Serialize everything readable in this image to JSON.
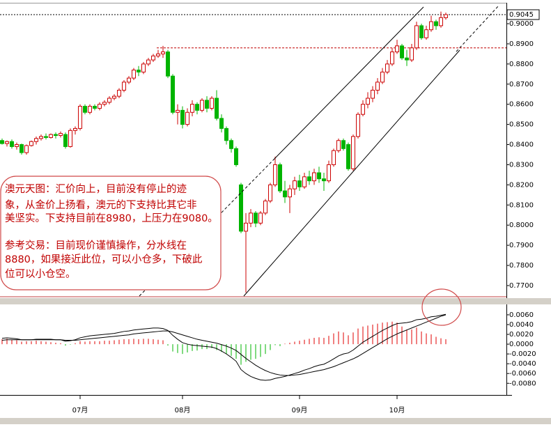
{
  "annotation": {
    "lines": [
      "澳元天图：汇价向上，目前没有停止的迹",
      "象，从金价上扬看，澳元的下支持比其它非",
      "美坚实。下支持目前在8980，上压力在9080。",
      "参考交易：目前现价谨慎操作，分水线在",
      "8880，如果接近此位，可以小仓多，下破此",
      "位可以小仓空。"
    ]
  },
  "chart_data": [
    {
      "type": "candlestick",
      "up_color": "#cc0000",
      "down_color": "#00b400",
      "ylim": [
        0.7648,
        0.909
      ],
      "yticks": [
        {
          "value": 0.9,
          "label": "0.9000"
        },
        {
          "value": 0.89,
          "label": "0.8900"
        },
        {
          "value": 0.88,
          "label": "0.8800"
        },
        {
          "value": 0.87,
          "label": "0.8700"
        },
        {
          "value": 0.86,
          "label": "0.8600"
        },
        {
          "value": 0.85,
          "label": "0.8500"
        },
        {
          "value": 0.84,
          "label": "0.8400"
        },
        {
          "value": 0.83,
          "label": "0.8300"
        },
        {
          "value": 0.82,
          "label": "0.8200"
        },
        {
          "value": 0.81,
          "label": "0.8100"
        },
        {
          "value": 0.8,
          "label": "0.8000"
        },
        {
          "value": 0.79,
          "label": "0.7900"
        },
        {
          "value": 0.78,
          "label": "0.7800"
        },
        {
          "value": 0.77,
          "label": "0.7700"
        }
      ],
      "last_price": {
        "value": 0.9045,
        "label": "0.9045"
      },
      "reference_line": 0.888,
      "reference_color": "#c00000",
      "ohlc": [
        [
          0.842,
          0.843,
          0.84,
          0.8405
        ],
        [
          0.8405,
          0.842,
          0.839,
          0.8415
        ],
        [
          0.8415,
          0.8425,
          0.838,
          0.839
        ],
        [
          0.839,
          0.841,
          0.8375,
          0.84
        ],
        [
          0.84,
          0.8405,
          0.835,
          0.836
        ],
        [
          0.836,
          0.84,
          0.835,
          0.8395
        ],
        [
          0.8395,
          0.842,
          0.839,
          0.8415
        ],
        [
          0.8415,
          0.844,
          0.84,
          0.843
        ],
        [
          0.843,
          0.845,
          0.842,
          0.844
        ],
        [
          0.844,
          0.8455,
          0.8425,
          0.8435
        ],
        [
          0.8435,
          0.8455,
          0.843,
          0.845
        ],
        [
          0.845,
          0.846,
          0.843,
          0.8445
        ],
        [
          0.8445,
          0.8465,
          0.8435,
          0.8455
        ],
        [
          0.845,
          0.846,
          0.838,
          0.839
        ],
        [
          0.839,
          0.848,
          0.8385,
          0.847
        ],
        [
          0.847,
          0.849,
          0.845,
          0.848
        ],
        [
          0.848,
          0.86,
          0.847,
          0.859
        ],
        [
          0.859,
          0.86,
          0.855,
          0.856
        ],
        [
          0.856,
          0.86,
          0.855,
          0.859
        ],
        [
          0.859,
          0.86,
          0.857,
          0.858
        ],
        [
          0.858,
          0.861,
          0.857,
          0.86
        ],
        [
          0.86,
          0.862,
          0.859,
          0.861
        ],
        [
          0.861,
          0.864,
          0.86,
          0.863
        ],
        [
          0.863,
          0.865,
          0.862,
          0.864
        ],
        [
          0.864,
          0.868,
          0.863,
          0.867
        ],
        [
          0.867,
          0.872,
          0.866,
          0.871
        ],
        [
          0.871,
          0.874,
          0.87,
          0.873
        ],
        [
          0.873,
          0.878,
          0.872,
          0.877
        ],
        [
          0.877,
          0.879,
          0.874,
          0.876
        ],
        [
          0.876,
          0.881,
          0.875,
          0.88
        ],
        [
          0.88,
          0.883,
          0.879,
          0.882
        ],
        [
          0.882,
          0.885,
          0.881,
          0.884
        ],
        [
          0.884,
          0.887,
          0.883,
          0.885
        ],
        [
          0.885,
          0.889,
          0.883,
          0.886
        ],
        [
          0.886,
          0.887,
          0.873,
          0.874
        ],
        [
          0.874,
          0.875,
          0.855,
          0.856
        ],
        [
          0.856,
          0.86,
          0.85,
          0.857
        ],
        [
          0.857,
          0.859,
          0.848,
          0.85
        ],
        [
          0.85,
          0.858,
          0.849,
          0.856
        ],
        [
          0.856,
          0.862,
          0.854,
          0.86
        ],
        [
          0.86,
          0.861,
          0.855,
          0.857
        ],
        [
          0.857,
          0.863,
          0.856,
          0.862
        ],
        [
          0.862,
          0.864,
          0.856,
          0.858
        ],
        [
          0.858,
          0.864,
          0.857,
          0.863
        ],
        [
          0.863,
          0.867,
          0.852,
          0.853
        ],
        [
          0.853,
          0.855,
          0.846,
          0.848
        ],
        [
          0.848,
          0.849,
          0.84,
          0.842
        ],
        [
          0.842,
          0.843,
          0.836,
          0.838
        ],
        [
          0.838,
          0.839,
          0.829,
          0.83
        ],
        [
          0.82,
          0.821,
          0.796,
          0.797
        ],
        [
          0.797,
          0.806,
          0.7665,
          0.801
        ],
        [
          0.801,
          0.808,
          0.799,
          0.806
        ],
        [
          0.806,
          0.807,
          0.799,
          0.801
        ],
        [
          0.801,
          0.807,
          0.8,
          0.806
        ],
        [
          0.806,
          0.813,
          0.805,
          0.812
        ],
        [
          0.812,
          0.821,
          0.811,
          0.82
        ],
        [
          0.82,
          0.834,
          0.819,
          0.83
        ],
        [
          0.83,
          0.831,
          0.816,
          0.817
        ],
        [
          0.817,
          0.822,
          0.811,
          0.814
        ],
        [
          0.814,
          0.82,
          0.806,
          0.818
        ],
        [
          0.818,
          0.824,
          0.815,
          0.822
        ],
        [
          0.822,
          0.825,
          0.817,
          0.819
        ],
        [
          0.819,
          0.826,
          0.818,
          0.824
        ],
        [
          0.824,
          0.827,
          0.82,
          0.822
        ],
        [
          0.822,
          0.828,
          0.82,
          0.826
        ],
        [
          0.826,
          0.829,
          0.821,
          0.823
        ],
        [
          0.823,
          0.826,
          0.817,
          0.822
        ],
        [
          0.822,
          0.832,
          0.821,
          0.83
        ],
        [
          0.83,
          0.838,
          0.829,
          0.837
        ],
        [
          0.837,
          0.843,
          0.836,
          0.842
        ],
        [
          0.842,
          0.843,
          0.837,
          0.838
        ],
        [
          0.84,
          0.841,
          0.827,
          0.828
        ],
        [
          0.828,
          0.845,
          0.827,
          0.844
        ],
        [
          0.844,
          0.856,
          0.843,
          0.855
        ],
        [
          0.855,
          0.862,
          0.854,
          0.86
        ],
        [
          0.86,
          0.866,
          0.858,
          0.863
        ],
        [
          0.863,
          0.869,
          0.861,
          0.867
        ],
        [
          0.867,
          0.873,
          0.865,
          0.871
        ],
        [
          0.871,
          0.878,
          0.87,
          0.876
        ],
        [
          0.876,
          0.882,
          0.875,
          0.88
        ],
        [
          0.88,
          0.888,
          0.879,
          0.886
        ],
        [
          0.886,
          0.892,
          0.885,
          0.889
        ],
        [
          0.889,
          0.89,
          0.882,
          0.883
        ],
        [
          0.883,
          0.887,
          0.879,
          0.882
        ],
        [
          0.882,
          0.89,
          0.881,
          0.888
        ],
        [
          0.888,
          0.901,
          0.887,
          0.899
        ],
        [
          0.899,
          0.9,
          0.892,
          0.893
        ],
        [
          0.893,
          0.899,
          0.892,
          0.897
        ],
        [
          0.897,
          0.904,
          0.896,
          0.901
        ],
        [
          0.901,
          0.902,
          0.897,
          0.899
        ],
        [
          0.899,
          0.906,
          0.898,
          0.903
        ],
        [
          0.903,
          0.9055,
          0.902,
          0.9045
        ]
      ]
    },
    {
      "type": "macd",
      "up_color": "#e00000",
      "down_color": "#00b400",
      "ylim": [
        -0.0101,
        0.0077
      ],
      "yticks": [
        {
          "value": 0.006,
          "label": "0.0060"
        },
        {
          "value": 0.004,
          "label": "0.0040"
        },
        {
          "value": 0.002,
          "label": "0.0020"
        },
        {
          "value": 0,
          "label": "0.0000"
        },
        {
          "value": -0.002,
          "label": "-0.0020"
        },
        {
          "value": -0.004,
          "label": "-0.0040"
        },
        {
          "value": -0.006,
          "label": "-0.0060"
        },
        {
          "value": -0.008,
          "label": "-0.0080"
        }
      ],
      "categories": [
        null,
        null,
        null,
        null,
        null,
        null,
        null,
        null,
        null,
        null,
        null,
        null,
        null,
        null,
        null,
        null,
        "07月",
        null,
        null,
        null,
        null,
        null,
        null,
        null,
        null,
        null,
        null,
        null,
        null,
        null,
        null,
        null,
        null,
        null,
        null,
        null,
        null,
        "08月",
        null,
        null,
        null,
        null,
        null,
        null,
        null,
        null,
        null,
        null,
        null,
        null,
        null,
        null,
        null,
        null,
        null,
        null,
        null,
        null,
        null,
        null,
        null,
        "09月",
        null,
        null,
        null,
        null,
        null,
        null,
        null,
        null,
        null,
        null,
        null,
        null,
        null,
        null,
        null,
        null,
        null,
        null,
        null,
        "10月",
        null,
        null,
        null,
        null,
        null,
        null,
        null,
        null,
        null,
        null
      ],
      "histogram": [
        0.001,
        0.0011,
        0.0009,
        0.0008,
        0.0005,
        0.0006,
        0.0006,
        0.0007,
        0.0006,
        0.0005,
        0.0004,
        0.0003,
        0.0002,
        -0.0003,
        -0.0001,
        0.0002,
        0.0006,
        0.0005,
        0.0006,
        0.0006,
        0.0006,
        0.0007,
        0.0007,
        0.0008,
        0.0009,
        0.001,
        0.001,
        0.0011,
        0.001,
        0.0011,
        0.0011,
        0.001,
        0.0009,
        0.0008,
        -0.0003,
        -0.0015,
        -0.0018,
        -0.002,
        -0.0017,
        -0.0014,
        -0.0013,
        -0.001,
        -0.001,
        -0.0008,
        -0.0012,
        -0.0016,
        -0.002,
        -0.0024,
        -0.003,
        -0.0042,
        -0.0036,
        -0.0032,
        -0.003,
        -0.0026,
        -0.002,
        -0.0012,
        -0.0002,
        -0.0004,
        0.0001,
        0.0003,
        0.0005,
        0.0007,
        0.0009,
        0.0011,
        0.0013,
        0.0014,
        0.0013,
        0.0017,
        0.0022,
        0.0026,
        0.0024,
        0.0018,
        0.0024,
        0.0032,
        0.0036,
        0.0038,
        0.004,
        0.0042,
        0.0044,
        0.0045,
        0.0046,
        0.0044,
        0.0036,
        0.003,
        0.003,
        0.0034,
        0.0026,
        0.0022,
        0.002,
        0.0015,
        0.0012,
        0.001
      ],
      "series": [
        {
          "color": "#000000",
          "values": [
            0.0012,
            0.0013,
            0.0012,
            0.0011,
            0.0009,
            0.0009,
            0.0009,
            0.001,
            0.001,
            0.001,
            0.001,
            0.0009,
            0.0009,
            0.0006,
            0.0007,
            0.0009,
            0.0013,
            0.0015,
            0.0017,
            0.0018,
            0.0019,
            0.002,
            0.0021,
            0.0022,
            0.0024,
            0.0026,
            0.0027,
            0.0029,
            0.003,
            0.0031,
            0.0032,
            0.0033,
            0.0033,
            0.0032,
            0.0028,
            0.0018,
            0.001,
            0.0003,
            0,
            -0.0002,
            -0.0003,
            -0.0004,
            -0.0005,
            -0.0006,
            -0.0009,
            -0.0014,
            -0.002,
            -0.0027,
            -0.0035,
            -0.0052,
            -0.006,
            -0.0066,
            -0.007,
            -0.0073,
            -0.0074,
            -0.0073,
            -0.007,
            -0.0068,
            -0.0066,
            -0.0063,
            -0.006,
            -0.0057,
            -0.0053,
            -0.005,
            -0.0046,
            -0.0043,
            -0.0041,
            -0.0036,
            -0.003,
            -0.0024,
            -0.002,
            -0.0018,
            -0.0012,
            -0.0004,
            0.0004,
            0.001,
            0.0016,
            0.0022,
            0.0028,
            0.0033,
            0.0038,
            0.0042,
            0.0043,
            0.0044,
            0.0046,
            0.005,
            0.0051,
            0.0053,
            0.0056,
            0.0057,
            0.0059,
            0.0061
          ]
        },
        {
          "color": "#000000",
          "values": [
            0.0008,
            0.0009,
            0.0009,
            0.0009,
            0.0009,
            0.0009,
            0.0009,
            0.0009,
            0.0009,
            0.0009,
            0.0009,
            0.0009,
            0.0009,
            0.0008,
            0.0008,
            0.0008,
            0.0009,
            0.001,
            0.0011,
            0.0012,
            0.0013,
            0.0014,
            0.0015,
            0.0016,
            0.0017,
            0.0018,
            0.0019,
            0.0021,
            0.0022,
            0.0023,
            0.0024,
            0.0025,
            0.0026,
            0.0027,
            0.0027,
            0.0025,
            0.0022,
            0.0019,
            0.0016,
            0.0013,
            0.001,
            0.0008,
            0.0006,
            0.0004,
            0.0002,
            -0.0001,
            -0.0004,
            -0.0008,
            -0.0013,
            -0.0021,
            -0.0029,
            -0.0036,
            -0.0043,
            -0.0049,
            -0.0054,
            -0.0058,
            -0.0061,
            -0.0063,
            -0.0064,
            -0.0064,
            -0.0063,
            -0.0062,
            -0.006,
            -0.0058,
            -0.0056,
            -0.0054,
            -0.0052,
            -0.0049,
            -0.0046,
            -0.0042,
            -0.0038,
            -0.0034,
            -0.003,
            -0.0025,
            -0.0019,
            -0.0013,
            -0.0007,
            -0.0001,
            0.0005,
            0.0011,
            0.0016,
            0.0021,
            0.0025,
            0.0029,
            0.0033,
            0.0037,
            0.0041,
            0.0045,
            0.0049,
            0.0053,
            0.0057,
            0.006
          ]
        }
      ]
    }
  ]
}
